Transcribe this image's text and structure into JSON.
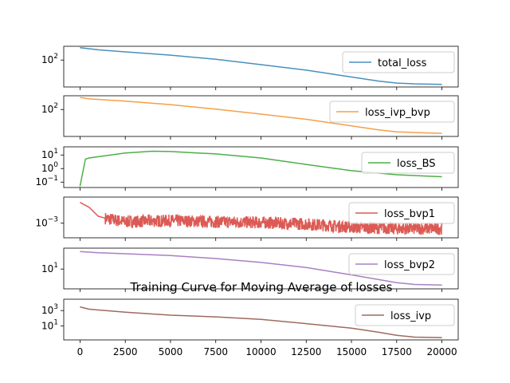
{
  "chart_data": {
    "type": "line",
    "title": "Training Curve for Moving Average of losses",
    "x_ticks": [
      0,
      2500,
      5000,
      7500,
      10000,
      12500,
      15000,
      17500,
      20000
    ],
    "xlim": [
      -900,
      20900
    ],
    "legend_placement": "right",
    "grid": false,
    "panels": [
      {
        "series_name": "total_loss",
        "color": "#4a8fbd",
        "yscale": "log",
        "ylim": [
          3,
          600
        ],
        "y_ticks": [
          {
            "value": 100,
            "label": "10",
            "exp": "2"
          }
        ],
        "noise": 0,
        "points": [
          [
            0,
            500
          ],
          [
            1000,
            380
          ],
          [
            2500,
            290
          ],
          [
            5000,
            190
          ],
          [
            7500,
            110
          ],
          [
            10000,
            55
          ],
          [
            12500,
            27
          ],
          [
            15000,
            11
          ],
          [
            16500,
            6.5
          ],
          [
            17500,
            5
          ],
          [
            18500,
            4.5
          ],
          [
            20000,
            4.2
          ]
        ]
      },
      {
        "series_name": "loss_ivp_bvp",
        "color": "#f4a04a",
        "yscale": "log",
        "ylim": [
          3,
          600
        ],
        "y_ticks": [
          {
            "value": 100,
            "label": "10",
            "exp": "2"
          }
        ],
        "noise": 0,
        "points": [
          [
            0,
            480
          ],
          [
            500,
            400
          ],
          [
            2500,
            300
          ],
          [
            5000,
            190
          ],
          [
            7500,
            105
          ],
          [
            10000,
            55
          ],
          [
            12500,
            28
          ],
          [
            15000,
            12
          ],
          [
            16500,
            7
          ],
          [
            17500,
            5.5
          ],
          [
            18500,
            5
          ],
          [
            20000,
            4.5
          ]
        ]
      },
      {
        "series_name": "loss_BS",
        "color": "#4dae4a",
        "yscale": "log",
        "ylim": [
          0.04,
          40
        ],
        "y_ticks": [
          {
            "value": 0.1,
            "label": "10",
            "exp": "−1"
          },
          {
            "value": 1,
            "label": "10",
            "exp": "0"
          },
          {
            "value": 10,
            "label": "10",
            "exp": "1"
          }
        ],
        "noise": 0,
        "points": [
          [
            0,
            0.05
          ],
          [
            300,
            5
          ],
          [
            500,
            6
          ],
          [
            1000,
            7.5
          ],
          [
            2500,
            14
          ],
          [
            4000,
            19
          ],
          [
            5000,
            18
          ],
          [
            7500,
            12
          ],
          [
            10000,
            6
          ],
          [
            12500,
            2
          ],
          [
            15000,
            0.7
          ],
          [
            17500,
            0.35
          ],
          [
            20000,
            0.25
          ]
        ]
      },
      {
        "series_name": "loss_bvp1",
        "color": "#dc5a55",
        "yscale": "log",
        "ylim": [
          0.00015,
          0.03
        ],
        "y_ticks": [
          {
            "value": 0.001,
            "label": "10",
            "exp": "−3"
          }
        ],
        "noise": 0.35,
        "points": [
          [
            0,
            0.015
          ],
          [
            500,
            0.008
          ],
          [
            1000,
            0.0025
          ],
          [
            1500,
            0.0018
          ],
          [
            2500,
            0.0012
          ],
          [
            5000,
            0.0014
          ],
          [
            7500,
            0.0012
          ],
          [
            10000,
            0.0011
          ],
          [
            12500,
            0.0009
          ],
          [
            15000,
            0.0006
          ],
          [
            17500,
            0.0005
          ],
          [
            20000,
            0.0005
          ]
        ]
      },
      {
        "series_name": "loss_bvp2",
        "color": "#a880c4",
        "yscale": "log",
        "ylim": [
          0.95,
          120
        ],
        "y_ticks": [
          {
            "value": 10,
            "label": "10",
            "exp": "1"
          }
        ],
        "noise": 0,
        "points": [
          [
            0,
            80
          ],
          [
            1000,
            70
          ],
          [
            2500,
            62
          ],
          [
            5000,
            50
          ],
          [
            7500,
            35
          ],
          [
            10000,
            22
          ],
          [
            12500,
            12
          ],
          [
            15000,
            5
          ],
          [
            17500,
            2
          ],
          [
            18500,
            1.6
          ],
          [
            20000,
            1.5
          ]
        ]
      },
      {
        "series_name": "loss_ivp",
        "color": "#9e6a5e",
        "yscale": "log",
        "ylim": [
          0.15,
          30000
        ],
        "y_ticks": [
          {
            "value": 10,
            "label": "10",
            "exp": "1"
          },
          {
            "value": 1000,
            "label": "10",
            "exp": "3"
          }
        ],
        "noise": 0,
        "points": [
          [
            0,
            3000
          ],
          [
            500,
            1500
          ],
          [
            2500,
            600
          ],
          [
            5000,
            250
          ],
          [
            7500,
            150
          ],
          [
            10000,
            70
          ],
          [
            12500,
            20
          ],
          [
            15000,
            5
          ],
          [
            16500,
            1.5
          ],
          [
            17500,
            0.6
          ],
          [
            18500,
            0.35
          ],
          [
            20000,
            0.3
          ]
        ]
      }
    ]
  }
}
